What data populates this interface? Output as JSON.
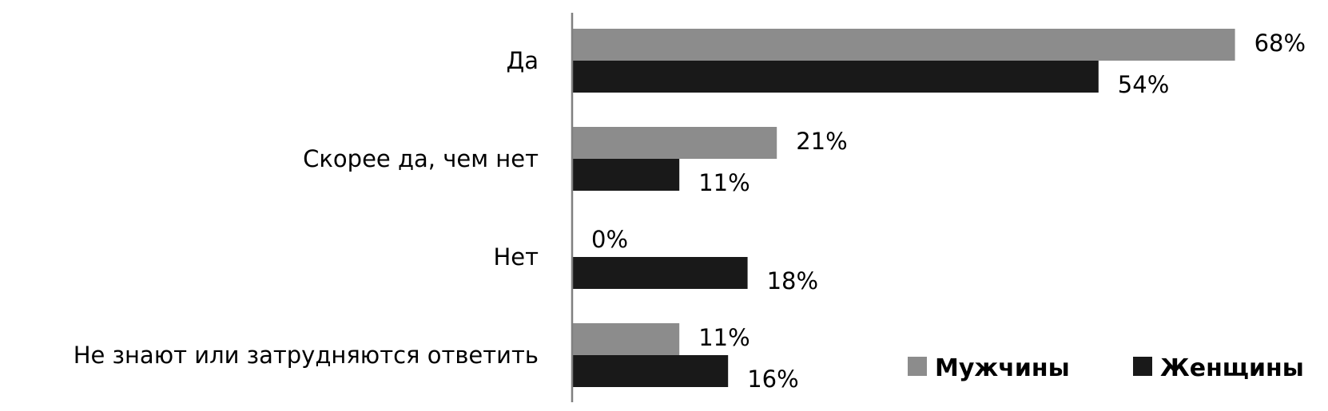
{
  "chart_data": {
    "type": "bar",
    "orientation": "horizontal",
    "categories": [
      "Да",
      "Скорее да, чем нет",
      "Нет",
      "Не знают или затрудняются ответить"
    ],
    "series": [
      {
        "name": "Мужчины",
        "values": [
          68,
          21,
          0,
          11
        ],
        "labels": [
          "68%",
          "21%",
          "0%",
          "11%"
        ],
        "color": "#8c8c8c"
      },
      {
        "name": "Женщины",
        "values": [
          54,
          11,
          18,
          16
        ],
        "labels": [
          "54%",
          "11%",
          "18%",
          "16%"
        ],
        "color": "#191919"
      }
    ],
    "unit": "%",
    "xlim": [
      0,
      75
    ],
    "grid": false,
    "legend": "bottom-right"
  }
}
